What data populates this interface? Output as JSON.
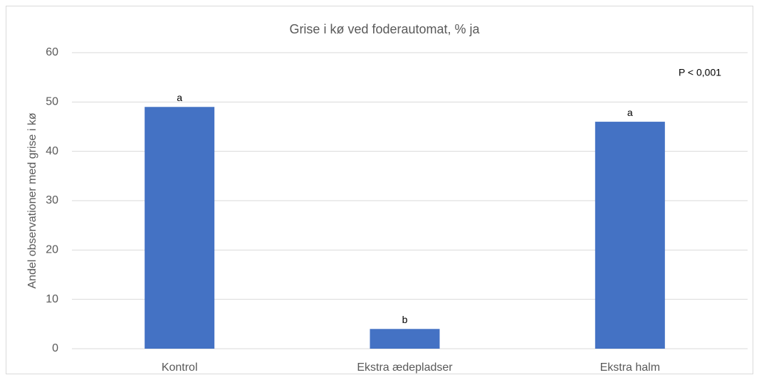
{
  "chart_data": {
    "type": "bar",
    "title": "Grise i kø ved foderautomat, % ja",
    "y_label": "Andel observationer med grise i kø",
    "annotation": "P < 0,001",
    "categories": [
      "Kontrol",
      "Ekstra ædepladser",
      "Ekstra halm"
    ],
    "values": [
      49,
      4,
      46
    ],
    "significance_letters": [
      "a",
      "b",
      "a"
    ],
    "color": "#4472c4",
    "ylim": [
      0,
      60
    ],
    "yticks": [
      0,
      10,
      20,
      30,
      40,
      50,
      60
    ],
    "grid": true
  }
}
